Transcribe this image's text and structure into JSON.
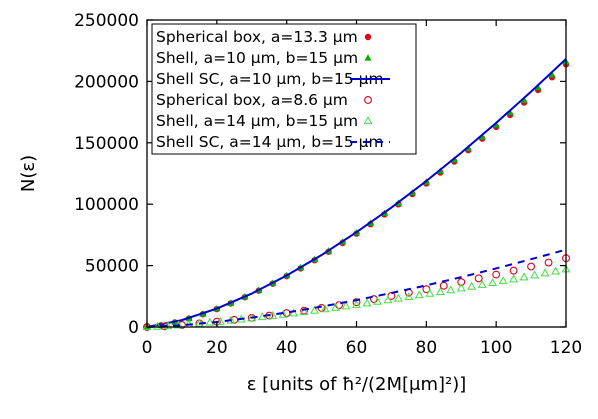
{
  "chart_data": {
    "type": "scatter",
    "title": "",
    "xlabel": "ε [units of ħ²/(2M[μm]²)]",
    "ylabel": "N(ε)",
    "xlim": [
      0,
      120
    ],
    "ylim": [
      0,
      250000
    ],
    "xticks": [
      0,
      20,
      40,
      60,
      80,
      100,
      120
    ],
    "yticks": [
      0,
      50000,
      100000,
      150000,
      200000,
      250000
    ],
    "xtick_labels": [
      "0",
      "20",
      "40",
      "60",
      "80",
      "100",
      "120"
    ],
    "ytick_labels": [
      "0",
      "50000",
      "100000",
      "150000",
      "200000",
      "250000"
    ],
    "grid": false,
    "legend_position": "top-left",
    "series": [
      {
        "name": "Spherical box, a=13.3 μm",
        "style": "filled-circle",
        "color": "#e0001e",
        "x": [
          0,
          4,
          8,
          12,
          16,
          20,
          24,
          28,
          32,
          36,
          40,
          44,
          48,
          52,
          56,
          60,
          64,
          68,
          72,
          76,
          80,
          84,
          88,
          92,
          96,
          100,
          104,
          108,
          112,
          116,
          120
        ],
        "y": [
          0,
          1300,
          3700,
          6800,
          10400,
          14600,
          19200,
          24200,
          29600,
          35300,
          41400,
          47700,
          54400,
          61300,
          68500,
          76000,
          83700,
          91700,
          99900,
          108300,
          116900,
          125800,
          134800,
          144000,
          153400,
          163000,
          172800,
          182800,
          193000,
          203400,
          213900
        ]
      },
      {
        "name": "Shell, a=10 μm, b=15 μm",
        "style": "filled-triangle",
        "color": "#00b000",
        "x": [
          0,
          4,
          8,
          12,
          16,
          20,
          24,
          28,
          32,
          36,
          40,
          44,
          48,
          52,
          56,
          60,
          64,
          68,
          72,
          76,
          80,
          84,
          88,
          92,
          96,
          100,
          104,
          108,
          112,
          116,
          120
        ],
        "y": [
          0,
          1400,
          3800,
          6900,
          10600,
          14800,
          19400,
          24500,
          29900,
          35700,
          41800,
          48200,
          54900,
          61900,
          69200,
          76700,
          84500,
          92500,
          100800,
          109300,
          118000,
          126900,
          136000,
          145300,
          154800,
          164500,
          174400,
          184500,
          194800,
          205300,
          215900
        ]
      },
      {
        "name": "Shell SC, a=10 μm, b=15 μm",
        "style": "solid-line",
        "color": "#0000cc",
        "x": [
          0,
          10,
          20,
          30,
          40,
          50,
          60,
          70,
          80,
          90,
          100,
          110,
          120
        ],
        "y": [
          0,
          5600,
          15000,
          27200,
          41900,
          58600,
          77200,
          97300,
          118900,
          141900,
          166200,
          191700,
          218300
        ]
      },
      {
        "name": "Spherical box, a=8.6 μm",
        "style": "open-circle",
        "color": "#e0001e",
        "x": [
          0,
          5,
          10,
          15,
          20,
          25,
          30,
          35,
          40,
          45,
          50,
          55,
          60,
          65,
          70,
          75,
          80,
          85,
          90,
          95,
          100,
          105,
          110,
          115,
          120
        ],
        "y": [
          0,
          600,
          1600,
          2900,
          4300,
          5800,
          7500,
          9300,
          11300,
          13300,
          15500,
          17800,
          20200,
          22700,
          25300,
          28000,
          30800,
          33600,
          36600,
          39600,
          42700,
          45900,
          49200,
          52500,
          56000
        ]
      },
      {
        "name": "Shell, a=14 μm, b=15 μm",
        "style": "open-triangle",
        "color": "#44dd44",
        "x": [
          0,
          3,
          6,
          9,
          12,
          15,
          18,
          21,
          24,
          27,
          30,
          33,
          36,
          39,
          42,
          45,
          48,
          51,
          54,
          57,
          60,
          63,
          66,
          69,
          72,
          75,
          78,
          81,
          84,
          87,
          90,
          93,
          96,
          99,
          102,
          105,
          108,
          111,
          114,
          117,
          120
        ],
        "y": [
          0,
          300,
          800,
          1400,
          2100,
          2800,
          3600,
          4400,
          5300,
          6200,
          7100,
          8100,
          9100,
          10100,
          11200,
          12300,
          13400,
          14500,
          15700,
          16900,
          18100,
          19300,
          20600,
          21900,
          23200,
          24500,
          25900,
          27200,
          28600,
          30000,
          31500,
          32900,
          34400,
          35900,
          37400,
          38900,
          40500,
          42100,
          43700,
          45300,
          47000
        ]
      },
      {
        "name": "Shell SC, a=14 μm, b=15 μm",
        "style": "dashed-line",
        "color": "#0000cc",
        "x": [
          0,
          10,
          20,
          30,
          40,
          50,
          60,
          70,
          80,
          90,
          100,
          110,
          120
        ],
        "y": [
          0,
          1400,
          4100,
          7600,
          11800,
          16600,
          21900,
          27700,
          33900,
          40600,
          47700,
          55200,
          63000
        ]
      }
    ]
  }
}
